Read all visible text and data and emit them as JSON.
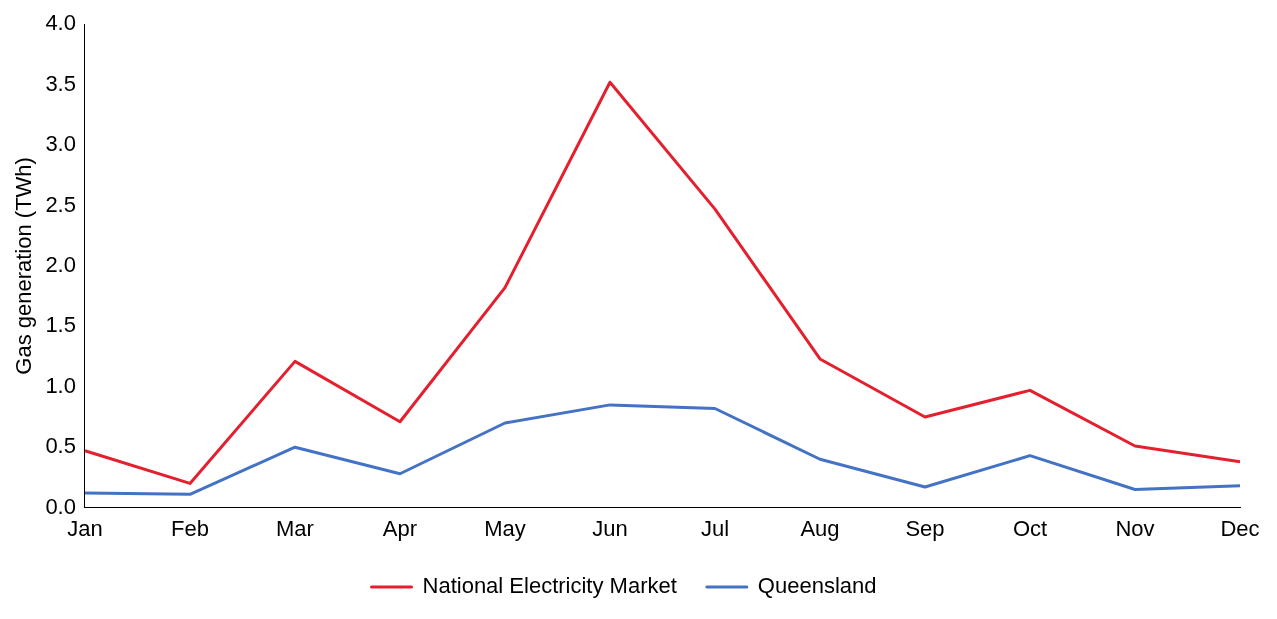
{
  "chart_data": {
    "type": "line",
    "ylabel": "Gas generation (TWh)",
    "categories": [
      "Jan",
      "Feb",
      "Mar",
      "Apr",
      "May",
      "Jun",
      "Jul",
      "Aug",
      "Sep",
      "Oct",
      "Nov",
      "Dec"
    ],
    "series": [
      {
        "name": "National Electricity Market",
        "color": "#e5202e",
        "values": [
          0.47,
          0.2,
          1.21,
          0.71,
          1.82,
          3.52,
          2.47,
          1.23,
          0.75,
          0.97,
          0.51,
          0.38
        ]
      },
      {
        "name": "Queensland",
        "color": "#4472c4",
        "values": [
          0.12,
          0.11,
          0.5,
          0.28,
          0.7,
          0.85,
          0.82,
          0.4,
          0.17,
          0.43,
          0.15,
          0.18
        ]
      }
    ],
    "ylim": [
      0,
      4
    ],
    "yticks": [
      {
        "value": 0,
        "label": "0.0"
      },
      0.5,
      {
        "value": 1,
        "label": "1.0"
      },
      1.5,
      {
        "value": 2,
        "label": "2.0"
      },
      2.5,
      {
        "value": 3,
        "label": "3.0"
      },
      3.5,
      {
        "value": 4,
        "label": "4.0"
      }
    ],
    "grid": false,
    "legend": "bottom",
    "marker": "none",
    "line_style": "solid"
  }
}
